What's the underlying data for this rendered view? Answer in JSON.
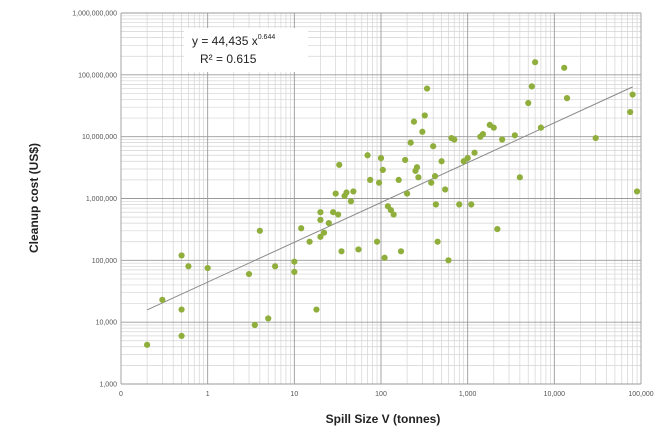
{
  "chart_data": {
    "type": "scatter",
    "title": "",
    "xlabel": "Spill Size V (tonnes)",
    "ylabel": "Cleanup cost  (US$)",
    "x_scale": "log",
    "y_scale": "log",
    "xlim": [
      0.1,
      100000
    ],
    "ylim": [
      1000,
      1000000000
    ],
    "x_ticks": [
      "0",
      "1",
      "10",
      "100",
      "1,000",
      "10,000",
      "100,000"
    ],
    "y_ticks": [
      "1,000",
      "10,000",
      "100,000",
      "1,000,000",
      "10,000,000",
      "100,000,000",
      "1,000,000,000"
    ],
    "grid": true,
    "marker_color": "#8fae3c",
    "trendline_color": "#8a8a8a",
    "trendline": {
      "type": "power",
      "coefficient": 44435,
      "exponent": 0.644,
      "equation": "y = 44,435 x",
      "exponent_label": "0.644",
      "r2_label": "R² = 0.615"
    },
    "points": [
      [
        0.2,
        4300
      ],
      [
        0.3,
        23000
      ],
      [
        0.5,
        6000
      ],
      [
        0.5,
        16000
      ],
      [
        0.5,
        120000
      ],
      [
        0.6,
        80000
      ],
      [
        1,
        75000
      ],
      [
        3,
        60000
      ],
      [
        3.5,
        9000
      ],
      [
        4,
        300000
      ],
      [
        5,
        11500
      ],
      [
        6,
        80000
      ],
      [
        10,
        95000
      ],
      [
        10,
        65000
      ],
      [
        12,
        330000
      ],
      [
        15,
        200000
      ],
      [
        18,
        16000
      ],
      [
        20,
        240000
      ],
      [
        20,
        450000
      ],
      [
        20,
        600000
      ],
      [
        22,
        280000
      ],
      [
        25,
        400000
      ],
      [
        28,
        600000
      ],
      [
        30,
        1200000
      ],
      [
        32,
        550000
      ],
      [
        33,
        3500000
      ],
      [
        35,
        140000
      ],
      [
        38,
        1100000
      ],
      [
        40,
        1250000
      ],
      [
        45,
        900000
      ],
      [
        48,
        1300000
      ],
      [
        55,
        150000
      ],
      [
        70,
        5000000
      ],
      [
        75,
        2000000
      ],
      [
        90,
        200000
      ],
      [
        95,
        1800000
      ],
      [
        100,
        4500000
      ],
      [
        105,
        2900000
      ],
      [
        110,
        110000
      ],
      [
        120,
        750000
      ],
      [
        130,
        650000
      ],
      [
        140,
        550000
      ],
      [
        160,
        2000000
      ],
      [
        170,
        140000
      ],
      [
        190,
        4200000
      ],
      [
        200,
        1200000
      ],
      [
        220,
        8000000
      ],
      [
        240,
        17500000
      ],
      [
        250,
        2800000
      ],
      [
        260,
        3200000
      ],
      [
        270,
        2200000
      ],
      [
        300,
        12000000
      ],
      [
        320,
        22000000
      ],
      [
        340,
        60000000
      ],
      [
        380,
        1800000
      ],
      [
        400,
        7000000
      ],
      [
        420,
        2300000
      ],
      [
        430,
        800000
      ],
      [
        450,
        200000
      ],
      [
        500,
        4000000
      ],
      [
        550,
        1400000
      ],
      [
        600,
        100000
      ],
      [
        650,
        9500000
      ],
      [
        700,
        9000000
      ],
      [
        800,
        800000
      ],
      [
        900,
        4000000
      ],
      [
        1000,
        4500000
      ],
      [
        1100,
        800000
      ],
      [
        1200,
        5500000
      ],
      [
        1400,
        10000000
      ],
      [
        1500,
        11000000
      ],
      [
        1800,
        15500000
      ],
      [
        2000,
        14000000
      ],
      [
        2200,
        320000
      ],
      [
        2500,
        9000000
      ],
      [
        3500,
        10500000
      ],
      [
        4000,
        2200000
      ],
      [
        5000,
        35000000
      ],
      [
        5500,
        65000000
      ],
      [
        6000,
        160000000
      ],
      [
        7000,
        14000000
      ],
      [
        13000,
        130000000
      ],
      [
        14000,
        42000000
      ],
      [
        30000,
        9500000
      ],
      [
        75000,
        25000000
      ],
      [
        80000,
        48000000
      ],
      [
        90000,
        1300000
      ]
    ]
  }
}
